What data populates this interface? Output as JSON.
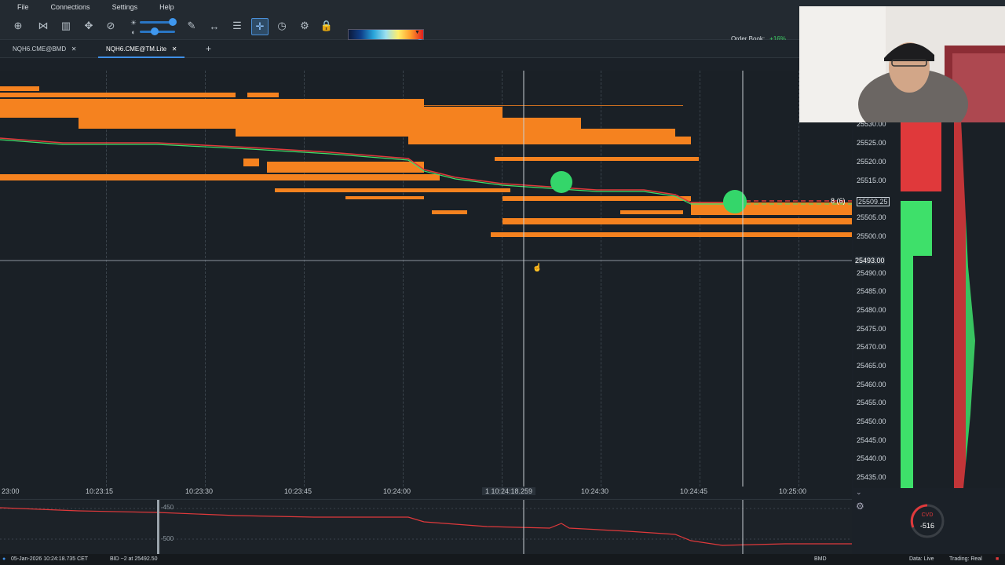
{
  "menu": [
    "File",
    "Connections",
    "Settings",
    "Help"
  ],
  "toolbar": {
    "icons": [
      "crosshair-add-icon",
      "share-icon",
      "chart-bars-icon",
      "move-icon",
      "link-icon",
      "brush-icon",
      "measure-icon",
      "comment-icon",
      "cursor-cross-icon",
      "clock-icon",
      "strategy-icon",
      "lock-icon"
    ],
    "order_book_label": "Order Book:",
    "order_book_value": "+16%"
  },
  "tabs": [
    {
      "label": "NQH6.CME@BMD",
      "close": "✕"
    },
    {
      "label": "NQH6.CME@TM.Lite",
      "close": "✕"
    }
  ],
  "add_tab": "+",
  "timeline": {
    "labels": [
      "23:00",
      "10:23:15",
      "10:23:30",
      "10:23:45",
      "10:24:00",
      "10:24:30",
      "10:24:45",
      "10:25:00"
    ],
    "cursor_label": "1 10:24:18.259"
  },
  "ladder": {
    "prices": [
      "25530.00",
      "25525.00",
      "25520.00",
      "25515.00",
      "25509.25",
      "25505.00",
      "25500.00",
      "25493.00",
      "25490.00",
      "25485.00",
      "25480.00",
      "25475.00",
      "25470.00",
      "25465.00",
      "25460.00",
      "25455.00",
      "25450.00",
      "25445.00",
      "25440.00",
      "25435.00"
    ],
    "last_trade_label": "8 (6)"
  },
  "indicator": {
    "level_a": "-450",
    "level_b": "-500"
  },
  "cvd": {
    "label": "CVD",
    "value": "-516"
  },
  "status": {
    "time": "05-Jan-2026 10:24:18.735 CET",
    "bid": "BID ~2 at 25492.50",
    "connection": "BMD",
    "data": "Data: Live",
    "trading": "Trading: Real"
  },
  "colors": {
    "accent": "#3f8fe6",
    "heat": "#f5821f",
    "buy": "#3ee06a",
    "sell": "#e0393b"
  }
}
